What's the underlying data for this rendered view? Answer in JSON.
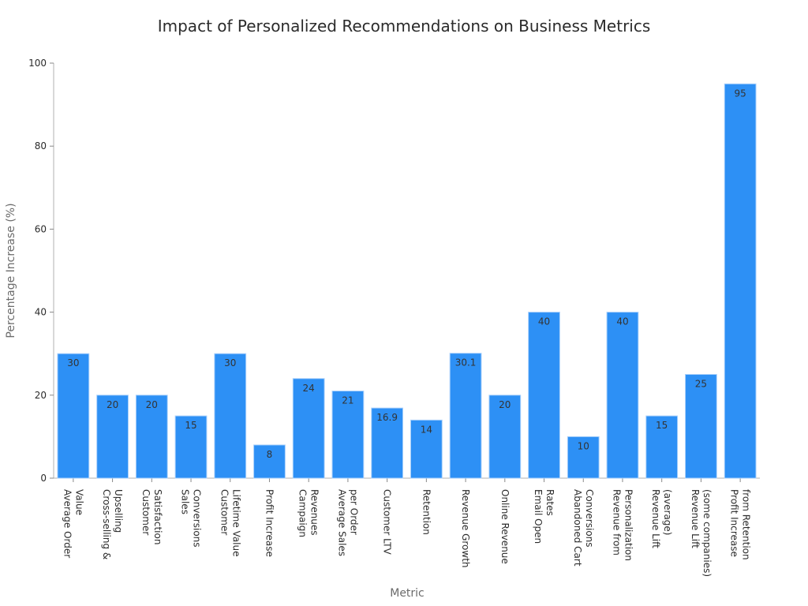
{
  "chart_data": {
    "type": "bar",
    "title": "Impact of Personalized Recommendations on Business Metrics",
    "xlabel": "Metric",
    "ylabel": "Percentage Increase (%)",
    "ylim": [
      0,
      100
    ],
    "yticks": [
      0,
      20,
      40,
      60,
      80,
      100
    ],
    "bar_color": "#2d90f5",
    "bar_edge_color": "#a9d0fb",
    "grid": false,
    "legend": "none",
    "categories": [
      [
        "Average Order",
        "Value"
      ],
      [
        "Cross-selling &",
        "Upselling"
      ],
      [
        "Customer",
        "Satisfaction"
      ],
      [
        "Sales",
        "Conversions"
      ],
      [
        "Customer",
        "Lifetime Value"
      ],
      [
        "Profit Increase"
      ],
      [
        "Campaign",
        "Revenues"
      ],
      [
        "Average Sales",
        "per Order"
      ],
      [
        "Customer LTV"
      ],
      [
        "Retention"
      ],
      [
        "Revenue Growth"
      ],
      [
        "Online Revenue"
      ],
      [
        "Email Open",
        "Rates"
      ],
      [
        "Abandoned Cart",
        "Conversions"
      ],
      [
        "Revenue from",
        "Personalization"
      ],
      [
        "Revenue Lift",
        "(average)"
      ],
      [
        "Revenue Lift",
        "(some companies)"
      ],
      [
        "Profit Increase",
        "from Retention"
      ]
    ],
    "values": [
      30,
      20,
      20,
      15,
      30,
      8,
      24,
      21,
      16.9,
      14,
      30.1,
      20,
      40,
      10,
      40,
      15,
      25,
      95
    ]
  }
}
